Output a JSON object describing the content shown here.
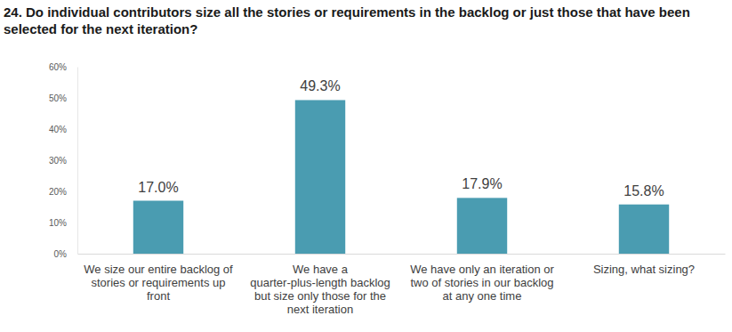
{
  "chart_data": {
    "type": "bar",
    "title": "24. Do individual contributors size all the stories or requirements in the backlog or just those that have been selected for the next iteration?",
    "categories": [
      "We size our entire backlog of stories or requirements up front",
      "We have a quarter-plus-length backlog but size only those for the next iteration",
      "We have only an iteration or two of stories in our backlog at any one time",
      "Sizing, what sizing?"
    ],
    "values": [
      17.0,
      49.3,
      17.9,
      15.8
    ],
    "value_labels": [
      "17.0%",
      "49.3%",
      "17.9%",
      "15.8%"
    ],
    "color": "#4a9cb1",
    "ylim": [
      0,
      60
    ],
    "yticks": [
      {
        "value": 0,
        "label": "0%"
      },
      {
        "value": 10,
        "label": "10%"
      },
      {
        "value": 20,
        "label": "20%"
      },
      {
        "value": 30,
        "label": "30%"
      },
      {
        "value": 40,
        "label": "40%"
      },
      {
        "value": 50,
        "label": "50%"
      },
      {
        "value": 60,
        "label": "60%"
      }
    ],
    "grid": false,
    "data_labels": true
  }
}
